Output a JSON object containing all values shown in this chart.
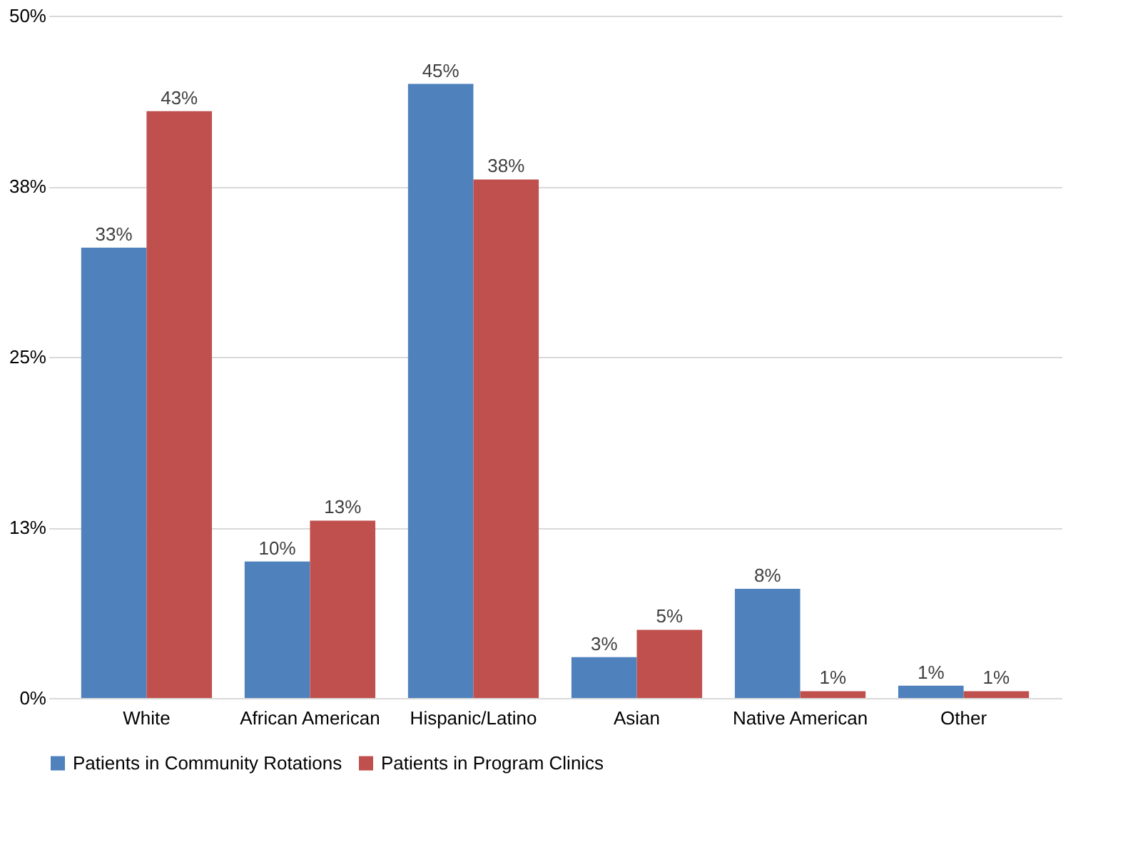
{
  "chart_data": {
    "type": "bar",
    "categories": [
      "White",
      "African American",
      "Hispanic/Latino",
      "Asian",
      "Native American",
      "Other"
    ],
    "series": [
      {
        "name": "Patients in Community Rotations",
        "color": "#4f81bd",
        "values": [
          33,
          10,
          45,
          3,
          8,
          0.9
        ],
        "value_labels": [
          "33%",
          "10%",
          "45%",
          "3%",
          "8%",
          "1%"
        ]
      },
      {
        "name": "Patients in Program Clinics",
        "color": "#c0504d",
        "values": [
          43,
          13,
          38,
          5,
          0.5,
          0.5
        ],
        "value_labels": [
          "43%",
          "13%",
          "38%",
          "5%",
          "1%",
          "1%"
        ]
      }
    ],
    "ylim": [
      0,
      50
    ],
    "yticks": [
      {
        "value": 0,
        "label": "0%"
      },
      {
        "value": 12.5,
        "label": "13%"
      },
      {
        "value": 25,
        "label": "25%"
      },
      {
        "value": 37.5,
        "label": "38%"
      },
      {
        "value": 50,
        "label": "50%"
      }
    ],
    "grid": "y",
    "legend": "bottom"
  }
}
